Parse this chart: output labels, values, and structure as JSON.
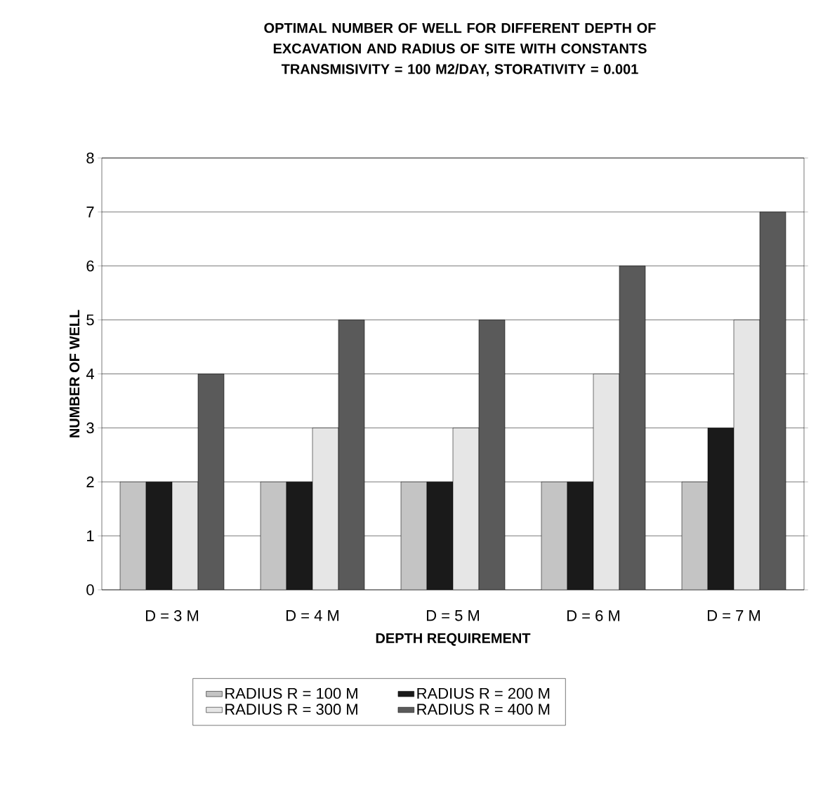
{
  "chart_data": {
    "type": "bar",
    "title": "OPTIMAL NUMBER OF WELL FOR DIFFERENT DEPTH OF EXCAVATION AND RADIUS OF SITE WITH CONSTANTS TRANSMISIVITY = 100 M2/DAY, STORATIVITY = 0.001",
    "xlabel": "DEPTH REQUIREMENT",
    "ylabel": "NUMBER OF WELL",
    "categories": [
      "D = 3 M",
      "D = 4 M",
      "D = 5 M",
      "D = 6 M",
      "D = 7 M"
    ],
    "series": [
      {
        "name": "RADIUS R = 100 M",
        "color": "#c4c4c4",
        "values": [
          2,
          2,
          2,
          2,
          2
        ]
      },
      {
        "name": "RADIUS R = 200 M",
        "color": "#1a1a1a",
        "values": [
          2,
          2,
          2,
          2,
          3
        ]
      },
      {
        "name": "RADIUS R = 300 M",
        "color": "#e6e6e6",
        "values": [
          2,
          3,
          3,
          4,
          5
        ]
      },
      {
        "name": "RADIUS R = 400 M",
        "color": "#5a5a5a",
        "values": [
          4,
          5,
          5,
          6,
          7
        ]
      }
    ],
    "ylim": [
      0,
      8
    ],
    "yticks": [
      0,
      1,
      2,
      3,
      4,
      5,
      6,
      7,
      8
    ],
    "grid": "y",
    "legend": "bottom"
  }
}
